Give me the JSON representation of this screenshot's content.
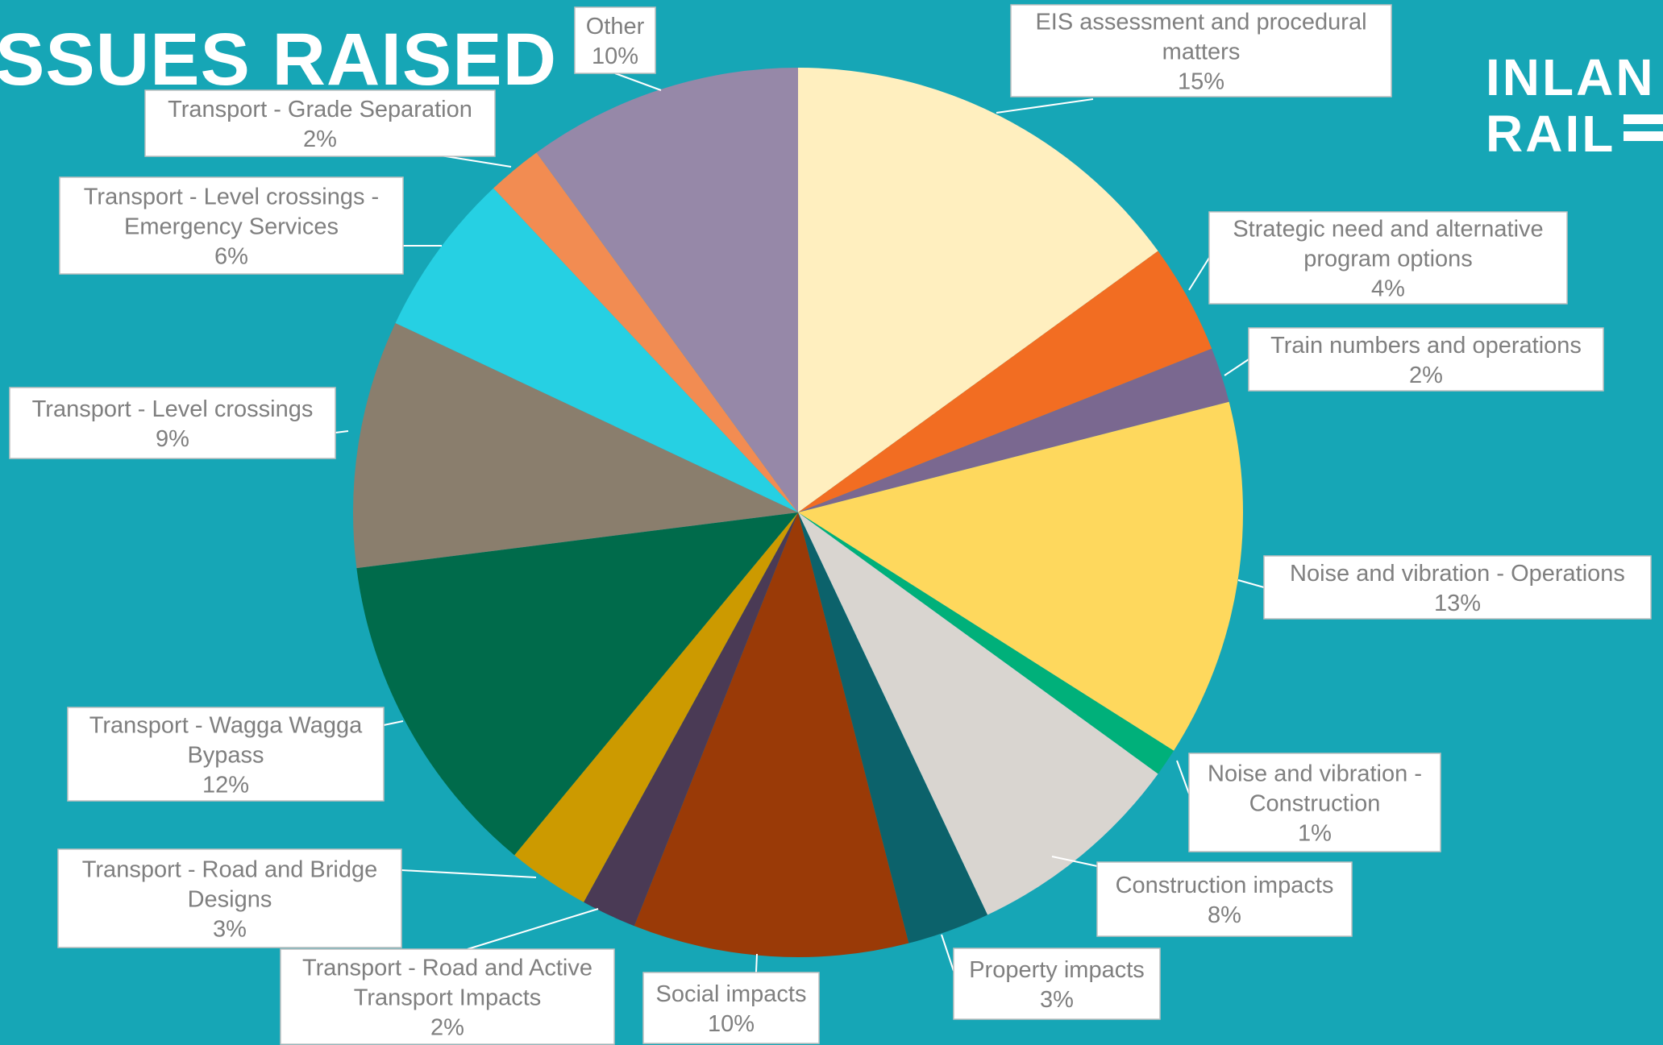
{
  "page": {
    "title": "SSUES RAISED",
    "logo_line1": "INLAN",
    "logo_line2": "RAIL"
  },
  "chart_data": {
    "type": "pie",
    "title": "",
    "slices": [
      {
        "label": "EIS assessment and procedural matters",
        "value": 15,
        "display": "15%",
        "color": "#ffefbf"
      },
      {
        "label": "Strategic need and alternative program options",
        "value": 4,
        "display": "4%",
        "color": "#f26d22"
      },
      {
        "label": "Train numbers and operations",
        "value": 2,
        "display": "2%",
        "color": "#7a6890"
      },
      {
        "label": "Noise and vibration - Operations",
        "value": 13,
        "display": "13%",
        "color": "#fed85d"
      },
      {
        "label": "Noise and vibration - Construction",
        "value": 1,
        "display": "1%",
        "color": "#00b07a"
      },
      {
        "label": "Construction impacts",
        "value": 8,
        "display": "8%",
        "color": "#d9d5d0"
      },
      {
        "label": "Property impacts",
        "value": 3,
        "display": "3%",
        "color": "#0c626b"
      },
      {
        "label": "Social impacts",
        "value": 10,
        "display": "10%",
        "color": "#9a3a07"
      },
      {
        "label": "Transport - Road and Active Transport Impacts",
        "value": 2,
        "display": "2%",
        "color": "#4a3a55"
      },
      {
        "label": "Transport - Road and Bridge Designs",
        "value": 3,
        "display": "3%",
        "color": "#cc9a00"
      },
      {
        "label": "Transport - Wagga Wagga Bypass",
        "value": 12,
        "display": "12%",
        "color": "#006b4b"
      },
      {
        "label": "Transport - Level crossings",
        "value": 9,
        "display": "9%",
        "color": "#8a7e6d"
      },
      {
        "label": "Transport - Level crossings - Emergency Services",
        "value": 6,
        "display": "6%",
        "color": "#26d0e3"
      },
      {
        "label": "Transport - Grade Separation",
        "value": 2,
        "display": "2%",
        "color": "#f28c52"
      },
      {
        "label": "Other",
        "value": 10,
        "display": "10%",
        "color": "#9688a8"
      }
    ],
    "label_lines": [
      [
        "EIS assessment and procedural",
        "matters",
        "15%"
      ],
      [
        "Strategic need and alternative",
        "program options",
        "4%"
      ],
      [
        "Train numbers and operations",
        "2%"
      ],
      [
        "Noise and vibration - Operations",
        "13%"
      ],
      [
        "Noise and vibration -",
        "Construction",
        "1%"
      ],
      [
        "Construction impacts",
        "8%"
      ],
      [
        "Property impacts",
        "3%"
      ],
      [
        "Social impacts",
        "10%"
      ],
      [
        "Transport - Road and Active",
        "Transport Impacts",
        "2%"
      ],
      [
        "Transport - Road and Bridge",
        "Designs",
        "3%"
      ],
      [
        "Transport - Wagga Wagga",
        "Bypass",
        "12%"
      ],
      [
        "Transport - Level crossings",
        "9%"
      ],
      [
        "Transport - Level crossings -",
        "Emergency Services",
        "6%"
      ],
      [
        "Transport - Grade Separation",
        "2%"
      ],
      [
        "Other",
        "10%"
      ]
    ]
  }
}
